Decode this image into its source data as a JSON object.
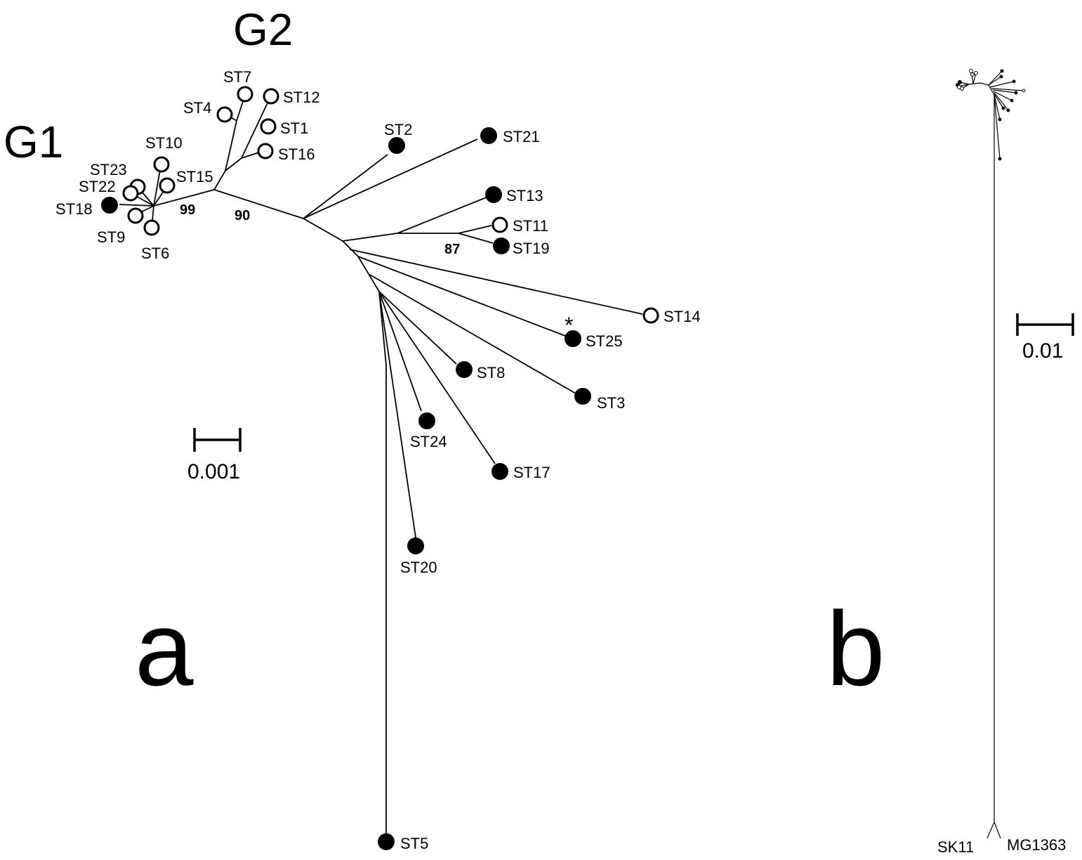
{
  "panels": {
    "a": {
      "panel_label": "a",
      "group_labels": {
        "g1": "G1",
        "g2": "G2"
      },
      "bootstrap": {
        "n99": "99",
        "n90": "90",
        "n87": "87"
      },
      "scale_label": "0.001",
      "asterisk": "*",
      "tips": {
        "st1": "ST1",
        "st2": "ST2",
        "st3": "ST3",
        "st4": "ST4",
        "st5": "ST5",
        "st6": "ST6",
        "st7": "ST7",
        "st8": "ST8",
        "st9": "ST9",
        "st10": "ST10",
        "st11": "ST11",
        "st12": "ST12",
        "st13": "ST13",
        "st14": "ST14",
        "st15": "ST15",
        "st16": "ST16",
        "st17": "ST17",
        "st18": "ST18",
        "st19": "ST19",
        "st20": "ST20",
        "st21": "ST21",
        "st22": "ST22",
        "st23": "ST23",
        "st24": "ST24",
        "st25": "ST25"
      }
    },
    "b": {
      "panel_label": "b",
      "scale_label": "0.01",
      "tips": {
        "sk11": "SK11",
        "mg1363": "MG1363"
      }
    }
  }
}
